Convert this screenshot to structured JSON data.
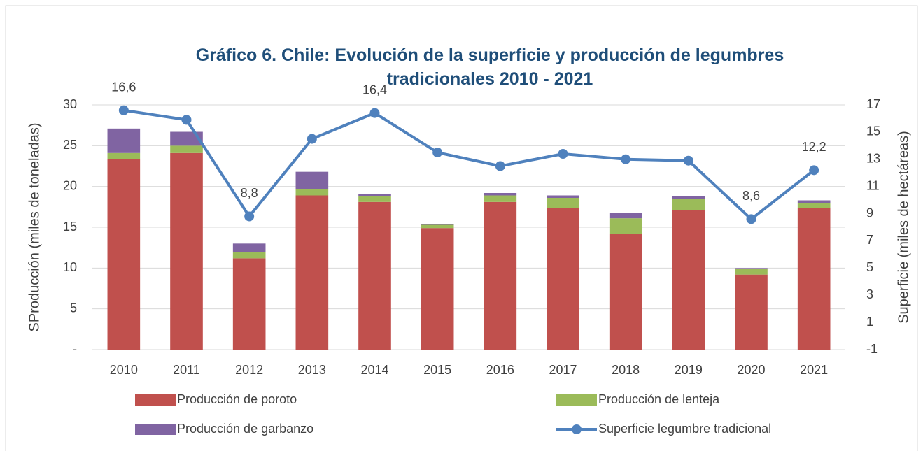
{
  "chart_data": {
    "type": "bar",
    "title": "Gráfico 6. Chile: Evolución de la superficie y producción de legumbres tradicionales 2010 - 2021",
    "y_label": "SProducción (miles de toneladas)",
    "y2_label": "Superficie (miles de hectáreas)",
    "categories": [
      "2010",
      "2011",
      "2012",
      "2013",
      "2014",
      "2015",
      "2016",
      "2017",
      "2018",
      "2019",
      "2020",
      "2021"
    ],
    "stacked": true,
    "series": [
      {
        "name": "Producción de poroto",
        "type": "bar",
        "color": "#c0504d",
        "values": [
          23.4,
          24.1,
          11.2,
          18.9,
          18.1,
          14.9,
          18.1,
          17.4,
          14.2,
          17.1,
          9.2,
          17.4
        ]
      },
      {
        "name": "Producción de lenteja",
        "type": "bar",
        "color": "#9bbb59",
        "values": [
          0.7,
          0.9,
          0.8,
          0.8,
          0.7,
          0.4,
          0.8,
          1.2,
          1.9,
          1.4,
          0.7,
          0.6
        ]
      },
      {
        "name": "Producción de garbanzo",
        "type": "bar",
        "color": "#8064a2",
        "values": [
          3.0,
          1.7,
          1.0,
          2.1,
          0.3,
          0.1,
          0.3,
          0.3,
          0.7,
          0.3,
          0.1,
          0.3
        ]
      },
      {
        "name": "Superficie legumbre tradicional",
        "type": "line",
        "axis": "y2",
        "color": "#4f81bd",
        "values": [
          16.6,
          15.9,
          8.8,
          14.5,
          16.4,
          13.5,
          12.5,
          13.4,
          13.0,
          12.9,
          8.6,
          12.2
        ],
        "value_labels": [
          "16,6",
          null,
          "8,8",
          null,
          "16,4",
          null,
          null,
          null,
          null,
          null,
          "8,6",
          "12,2"
        ]
      }
    ],
    "ylim": [
      0,
      30
    ],
    "yticks": [
      {
        "value": 0,
        "label": "-"
      },
      5,
      10,
      15,
      20,
      25,
      30
    ],
    "y2lim": [
      -1,
      17
    ],
    "y2ticks": [
      -1,
      1,
      3,
      5,
      7,
      9,
      11,
      13,
      15,
      17
    ],
    "grid": true,
    "legend": "bottom"
  }
}
